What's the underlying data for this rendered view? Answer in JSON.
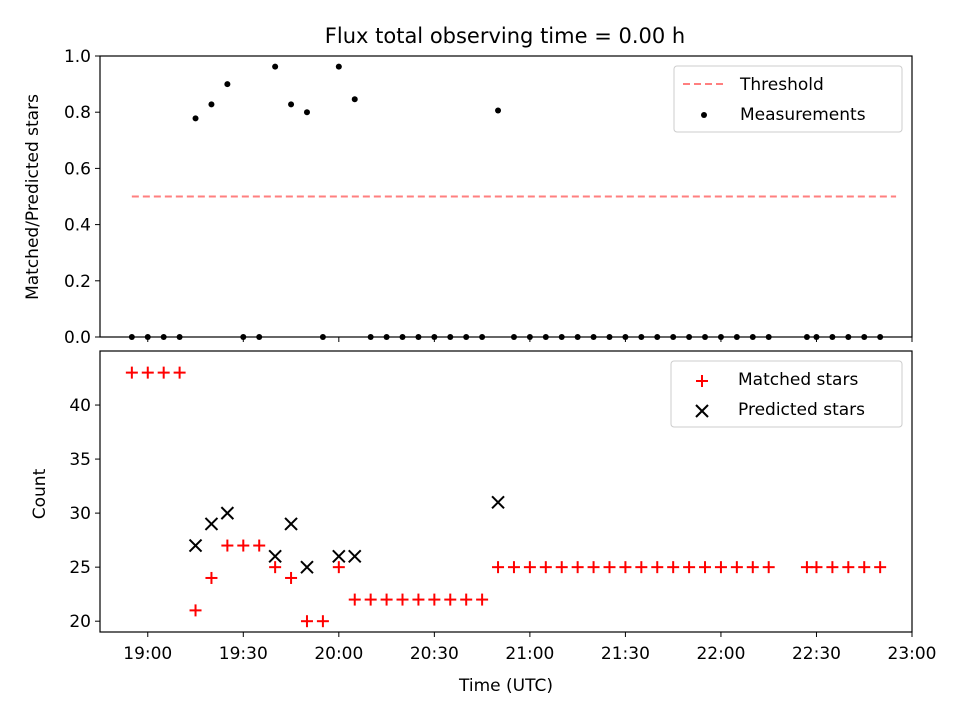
{
  "title": "Flux total observing time = 0.00 h",
  "chart_data": [
    {
      "type": "scatter",
      "panel": "top",
      "ylabel": "Matched/Predicted stars",
      "xlim": [
        "18:45",
        "23:00"
      ],
      "ylim": [
        0,
        1.0
      ],
      "yticks": [
        "0.0",
        "0.2",
        "0.4",
        "0.6",
        "0.8",
        "1.0"
      ],
      "legend_position": "upper right",
      "series": [
        {
          "name": "Threshold",
          "kind": "line",
          "style": "dashed",
          "color": "#ff7f7f",
          "x": [
            "18:55",
            "22:55"
          ],
          "y": [
            0.5,
            0.5
          ]
        },
        {
          "name": "Measurements",
          "kind": "scatter",
          "marker": "dot",
          "color": "#000000",
          "x": [
            "18:55",
            "19:00",
            "19:05",
            "19:10",
            "19:15",
            "19:20",
            "19:25",
            "19:30",
            "19:35",
            "19:40",
            "19:45",
            "19:50",
            "19:55",
            "20:00",
            "20:05",
            "20:10",
            "20:15",
            "20:20",
            "20:25",
            "20:30",
            "20:35",
            "20:40",
            "20:45",
            "20:50",
            "20:55",
            "21:00",
            "21:05",
            "21:10",
            "21:15",
            "21:20",
            "21:25",
            "21:30",
            "21:35",
            "21:40",
            "21:45",
            "21:50",
            "21:55",
            "22:00",
            "22:05",
            "22:10",
            "22:15",
            "22:27",
            "22:30",
            "22:35",
            "22:40",
            "22:45",
            "22:50"
          ],
          "y": [
            0,
            0,
            0,
            0,
            0.778,
            0.828,
            0.9,
            0,
            0,
            0.962,
            0.828,
            0.8,
            0,
            0.962,
            0.846,
            0,
            0,
            0,
            0,
            0,
            0,
            0,
            0,
            0.806,
            0,
            0,
            0,
            0,
            0,
            0,
            0,
            0,
            0,
            0,
            0,
            0,
            0,
            0,
            0,
            0,
            0,
            0,
            0,
            0,
            0,
            0,
            0
          ]
        }
      ]
    },
    {
      "type": "scatter",
      "panel": "bottom",
      "xlabel": "Time (UTC)",
      "ylabel": "Count",
      "xlim": [
        "18:45",
        "23:00"
      ],
      "xticks": [
        "19:00",
        "19:30",
        "20:00",
        "20:30",
        "21:00",
        "21:30",
        "22:00",
        "22:30",
        "23:00"
      ],
      "ylim": [
        19,
        45
      ],
      "yticks": [
        "20",
        "25",
        "30",
        "35",
        "40"
      ],
      "legend_position": "upper right",
      "series": [
        {
          "name": "Matched stars",
          "marker": "plus",
          "color": "#ff0000",
          "x": [
            "18:55",
            "19:00",
            "19:05",
            "19:10",
            "19:15",
            "19:20",
            "19:25",
            "19:30",
            "19:35",
            "19:40",
            "19:45",
            "19:50",
            "19:55",
            "20:00",
            "20:05",
            "20:10",
            "20:15",
            "20:20",
            "20:25",
            "20:30",
            "20:35",
            "20:40",
            "20:45",
            "20:50",
            "20:55",
            "21:00",
            "21:05",
            "21:10",
            "21:15",
            "21:20",
            "21:25",
            "21:30",
            "21:35",
            "21:40",
            "21:45",
            "21:50",
            "21:55",
            "22:00",
            "22:05",
            "22:10",
            "22:15",
            "22:27",
            "22:30",
            "22:35",
            "22:40",
            "22:45",
            "22:50"
          ],
          "y": [
            43,
            43,
            43,
            43,
            21,
            24,
            27,
            27,
            27,
            25,
            24,
            20,
            20,
            25,
            22,
            22,
            22,
            22,
            22,
            22,
            22,
            22,
            22,
            25,
            25,
            25,
            25,
            25,
            25,
            25,
            25,
            25,
            25,
            25,
            25,
            25,
            25,
            25,
            25,
            25,
            25,
            25,
            25,
            25,
            25,
            25,
            25
          ]
        },
        {
          "name": "Predicted stars",
          "marker": "x",
          "color": "#000000",
          "x": [
            "19:15",
            "19:20",
            "19:25",
            "19:40",
            "19:45",
            "19:50",
            "20:00",
            "20:05",
            "20:50"
          ],
          "y": [
            27,
            29,
            30,
            26,
            29,
            25,
            26,
            26,
            31
          ]
        }
      ]
    }
  ]
}
